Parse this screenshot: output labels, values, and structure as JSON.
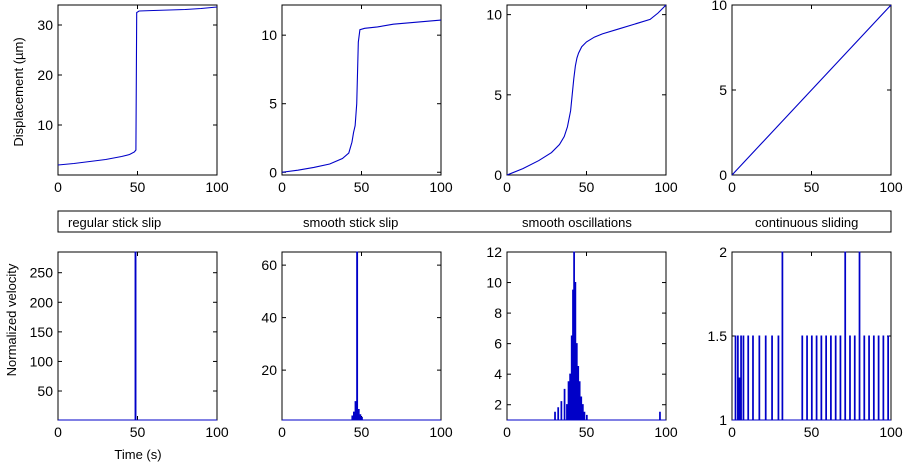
{
  "labels": {
    "ylabel_top": "Displacement (µm)",
    "ylabel_bottom": "Normalized velocity",
    "xlabel": "Time (s)"
  },
  "regimes": [
    "regular stick slip",
    "smooth stick slip",
    "smooth oscillations",
    "continuous sliding"
  ],
  "colors": {
    "series": "#0000c8",
    "axes": "#000000",
    "background": "#ffffff"
  },
  "chart_data": [
    {
      "type": "line",
      "row": "displacement",
      "regime": "regular stick slip",
      "xlim": [
        0,
        100
      ],
      "ylim": [
        0,
        34
      ],
      "xticks": [
        0,
        50,
        100
      ],
      "yticks": [
        10,
        20,
        30
      ],
      "grid": false,
      "x": [
        0,
        10,
        20,
        30,
        40,
        45,
        48,
        49,
        49.5,
        51,
        60,
        70,
        80,
        90,
        100
      ],
      "y": [
        2,
        2.3,
        2.7,
        3.1,
        3.7,
        4.1,
        4.6,
        5.0,
        32.5,
        32.8,
        32.9,
        33.0,
        33.1,
        33.3,
        33.6
      ]
    },
    {
      "type": "line",
      "row": "displacement",
      "regime": "smooth stick slip",
      "xlim": [
        0,
        100
      ],
      "ylim": [
        -0.2,
        12.2
      ],
      "xticks": [
        0,
        50,
        100
      ],
      "yticks": [
        0,
        5,
        10
      ],
      "grid": false,
      "x": [
        0,
        10,
        20,
        30,
        38,
        42,
        44,
        45,
        46,
        47,
        48,
        49,
        52,
        60,
        70,
        80,
        90,
        100
      ],
      "y": [
        0,
        0.15,
        0.35,
        0.6,
        1.0,
        1.4,
        2.2,
        2.9,
        3.4,
        5.0,
        9.5,
        10.4,
        10.5,
        10.6,
        10.8,
        10.9,
        11.0,
        11.1
      ]
    },
    {
      "type": "line",
      "row": "displacement",
      "regime": "smooth oscillations",
      "xlim": [
        0,
        100
      ],
      "ylim": [
        0,
        10.6
      ],
      "xticks": [
        0,
        50,
        100
      ],
      "yticks": [
        0,
        5,
        10
      ],
      "grid": false,
      "x": [
        0,
        10,
        20,
        28,
        33,
        36,
        38,
        40,
        41,
        42,
        43,
        44,
        45,
        47,
        50,
        55,
        60,
        70,
        80,
        90,
        95,
        100
      ],
      "y": [
        0,
        0.4,
        0.9,
        1.4,
        1.9,
        2.4,
        3.0,
        4.0,
        5.0,
        6.0,
        6.8,
        7.3,
        7.6,
        8.0,
        8.3,
        8.6,
        8.8,
        9.1,
        9.4,
        9.7,
        10.1,
        10.6
      ]
    },
    {
      "type": "line",
      "row": "displacement",
      "regime": "continuous sliding",
      "xlim": [
        0,
        100
      ],
      "ylim": [
        0,
        10
      ],
      "xticks": [
        0,
        50,
        100
      ],
      "yticks": [
        0,
        5,
        10
      ],
      "grid": false,
      "x": [
        0,
        100
      ],
      "y": [
        0,
        10
      ]
    },
    {
      "type": "line",
      "row": "velocity",
      "regime": "regular stick slip",
      "xlim": [
        0,
        100
      ],
      "ylim": [
        1,
        285
      ],
      "xticks": [
        0,
        50,
        100
      ],
      "yticks": [
        50,
        100,
        150,
        200,
        250
      ],
      "grid": false,
      "x": [
        0,
        48.5,
        48.5,
        49,
        49,
        100
      ],
      "y": [
        1,
        1,
        285,
        285,
        1,
        1
      ]
    },
    {
      "type": "line",
      "row": "velocity",
      "regime": "smooth stick slip",
      "xlim": [
        0,
        100
      ],
      "ylim": [
        1,
        65
      ],
      "xticks": [
        0,
        50,
        100
      ],
      "yticks": [
        20,
        40,
        60
      ],
      "grid": false,
      "x": [
        0,
        44,
        44,
        44.5,
        44.5,
        45,
        45,
        45.5,
        45.5,
        46,
        46,
        46.5,
        46.5,
        47,
        47,
        47.5,
        47.5,
        48,
        48,
        48.5,
        48.5,
        49,
        49,
        49.5,
        49.5,
        50,
        50,
        50.5,
        50.5,
        100
      ],
      "y": [
        1,
        1,
        2.5,
        2.5,
        1,
        1,
        4,
        4,
        1,
        1,
        8,
        8,
        1,
        1,
        65,
        65,
        1,
        1,
        5,
        5,
        1,
        1,
        3,
        3,
        1,
        1,
        2,
        2,
        1,
        1
      ]
    },
    {
      "type": "line",
      "row": "velocity",
      "regime": "smooth oscillations",
      "xlim": [
        0,
        100
      ],
      "ylim": [
        1,
        12
      ],
      "xticks": [
        0,
        50,
        100
      ],
      "yticks": [
        2,
        4,
        6,
        8,
        10,
        12
      ],
      "grid": false,
      "x": [
        0,
        30,
        30,
        30.4,
        30.4,
        32,
        32,
        32.4,
        32.4,
        34,
        34,
        34.4,
        34.4,
        36,
        36,
        36.4,
        36.4,
        37.5,
        37.5,
        37.9,
        37.9,
        38.5,
        38.5,
        38.9,
        38.9,
        39.5,
        39.5,
        39.9,
        39.9,
        40.5,
        40.5,
        40.9,
        40.9,
        41.3,
        41.3,
        41.7,
        41.7,
        42,
        42,
        42.4,
        42.4,
        42.8,
        42.8,
        43.2,
        43.2,
        43.7,
        43.7,
        44.1,
        44.1,
        44.6,
        44.6,
        45,
        45,
        45.5,
        45.5,
        45.9,
        45.9,
        46.5,
        46.5,
        46.9,
        46.9,
        47.5,
        47.5,
        47.9,
        47.9,
        48.5,
        48.5,
        48.9,
        48.9,
        50,
        50,
        50.4,
        50.4,
        96,
        96,
        96.4,
        96.4,
        100
      ],
      "y": [
        1,
        1,
        1.5,
        1.5,
        1,
        1,
        1.8,
        1.8,
        1,
        1,
        2.2,
        2.2,
        1,
        1,
        3.0,
        3.0,
        1,
        1,
        2.0,
        2.0,
        1,
        1,
        3.5,
        3.5,
        1,
        1,
        4.0,
        4.0,
        1,
        1,
        6.5,
        6.5,
        1,
        1,
        9.5,
        9.5,
        1,
        1,
        12,
        12,
        1,
        1,
        10,
        10,
        1,
        1,
        6.0,
        6.0,
        1,
        1,
        4.5,
        4.5,
        1,
        1,
        3.5,
        3.5,
        1,
        1,
        2.5,
        2.5,
        1,
        1,
        2.0,
        2.0,
        1,
        1,
        1.5,
        1.5,
        1,
        1,
        1.3,
        1.3,
        1,
        1,
        1.5,
        1.5,
        1,
        1
      ]
    },
    {
      "type": "line",
      "row": "velocity",
      "regime": "continuous sliding",
      "xlim": [
        0,
        100
      ],
      "ylim": [
        1,
        2
      ],
      "xticks": [
        0,
        50,
        100
      ],
      "yticks": [
        1,
        1.5,
        2
      ],
      "grid": false,
      "x": [
        0,
        2,
        2,
        2.4,
        2.4,
        3.5,
        3.5,
        3.9,
        3.9,
        4.5,
        4.5,
        4.9,
        4.9,
        5.5,
        5.5,
        5.9,
        5.9,
        7,
        7,
        7.4,
        7.4,
        10,
        10,
        10.4,
        10.4,
        13,
        13,
        13.4,
        13.4,
        17,
        17,
        17.4,
        17.4,
        21,
        21,
        21.4,
        21.4,
        25,
        25,
        25.4,
        25.4,
        29,
        29,
        29.4,
        29.4,
        31.5,
        31.5,
        31.9,
        31.9,
        44,
        44,
        44.4,
        44.4,
        47,
        47,
        47.4,
        47.4,
        50,
        50,
        50.4,
        50.4,
        53,
        53,
        53.4,
        53.4,
        56,
        56,
        56.4,
        56.4,
        59,
        59,
        59.4,
        59.4,
        62,
        62,
        62.4,
        62.4,
        65,
        65,
        65.4,
        65.4,
        68,
        68,
        68.4,
        68.4,
        71,
        71,
        71.4,
        71.4,
        74,
        74,
        74.4,
        74.4,
        77,
        77,
        77.4,
        77.4,
        80,
        80,
        80.4,
        80.4,
        83,
        83,
        83.4,
        83.4,
        86,
        86,
        86.4,
        86.4,
        89,
        89,
        89.4,
        89.4,
        92,
        92,
        92.4,
        92.4,
        95,
        95,
        95.4,
        95.4,
        98,
        98,
        98.4,
        98.4,
        100
      ],
      "y": [
        1,
        1,
        1.5,
        1.5,
        1,
        1,
        1.5,
        1.5,
        1,
        1,
        1.25,
        1.25,
        1,
        1,
        1.5,
        1.5,
        1,
        1,
        1.5,
        1.5,
        1,
        1,
        1.5,
        1.5,
        1,
        1,
        1.5,
        1.5,
        1,
        1,
        1.5,
        1.5,
        1,
        1,
        1.5,
        1.5,
        1,
        1,
        1.5,
        1.5,
        1,
        1,
        1.5,
        1.5,
        1,
        1,
        2,
        2,
        1,
        1,
        1.5,
        1.5,
        1,
        1,
        1.5,
        1.5,
        1,
        1,
        1.5,
        1.5,
        1,
        1,
        1.5,
        1.5,
        1,
        1,
        1.5,
        1.5,
        1,
        1,
        1.5,
        1.5,
        1,
        1,
        1.5,
        1.5,
        1,
        1,
        1.5,
        1.5,
        1,
        1,
        1.5,
        1.5,
        1,
        1,
        2,
        2,
        1,
        1,
        1.5,
        1.5,
        1,
        1,
        1.5,
        1.5,
        1,
        1,
        2,
        2,
        1,
        1,
        1.5,
        1.5,
        1,
        1,
        1.5,
        1.5,
        1,
        1,
        1.5,
        1.5,
        1,
        1,
        1.5,
        1.5,
        1,
        1,
        1.5,
        1.5,
        1,
        1,
        1.5,
        1.5,
        1,
        1
      ]
    }
  ]
}
